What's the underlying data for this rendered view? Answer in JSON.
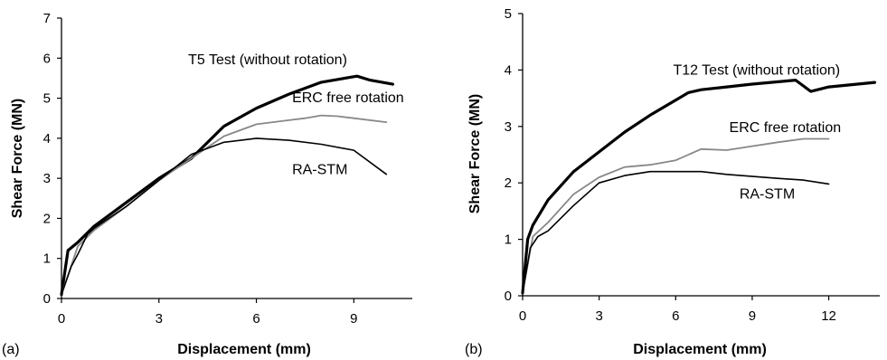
{
  "chart_data": [
    {
      "type": "line",
      "panel_label": "(a)",
      "title": "",
      "xlabel": "Displacement (mm)",
      "ylabel": "Shear Force (MN)",
      "xlim": [
        0,
        10.8
      ],
      "ylim": [
        0,
        7
      ],
      "x_ticks": [
        0,
        3,
        6,
        9
      ],
      "y_ticks": [
        0,
        1,
        2,
        3,
        4,
        5,
        6,
        7
      ],
      "grid": false,
      "legend": "none",
      "series": [
        {
          "name": "T5 Test (without rotation)",
          "color": "#000000",
          "line_width": "thick",
          "points": [
            [
              0,
              0.1
            ],
            [
              0.2,
              1.2
            ],
            [
              0.5,
              1.4
            ],
            [
              1,
              1.8
            ],
            [
              2,
              2.4
            ],
            [
              3,
              3.0
            ],
            [
              4,
              3.5
            ],
            [
              5,
              4.3
            ],
            [
              6,
              4.75
            ],
            [
              7,
              5.1
            ],
            [
              8,
              5.4
            ],
            [
              9.1,
              5.55
            ],
            [
              9.5,
              5.45
            ],
            [
              10.2,
              5.35
            ]
          ]
        },
        {
          "name": "ERC free rotation",
          "color": "#888888",
          "line_width": "medium",
          "points": [
            [
              0,
              0.1
            ],
            [
              0.5,
              1.3
            ],
            [
              1,
              1.7
            ],
            [
              2,
              2.3
            ],
            [
              3,
              2.95
            ],
            [
              4,
              3.5
            ],
            [
              5,
              4.05
            ],
            [
              6,
              4.35
            ],
            [
              7,
              4.45
            ],
            [
              7.5,
              4.5
            ],
            [
              8,
              4.57
            ],
            [
              8.5,
              4.55
            ],
            [
              9,
              4.5
            ],
            [
              10,
              4.4
            ]
          ]
        },
        {
          "name": "RA-STM",
          "color": "#000000",
          "line_width": "thin",
          "points": [
            [
              0,
              0.1
            ],
            [
              0.3,
              0.8
            ],
            [
              0.5,
              1.1
            ],
            [
              0.8,
              1.6
            ],
            [
              1,
              1.75
            ],
            [
              2,
              2.3
            ],
            [
              3,
              2.95
            ],
            [
              4,
              3.6
            ],
            [
              5,
              3.9
            ],
            [
              6,
              4.0
            ],
            [
              7,
              3.95
            ],
            [
              8,
              3.85
            ],
            [
              9,
              3.7
            ],
            [
              10,
              3.1
            ]
          ]
        }
      ],
      "annotations": [
        {
          "text": "T5 Test (without rotation)",
          "x": 3.9,
          "y": 5.85
        },
        {
          "text": "ERC free rotation",
          "x": 7.1,
          "y": 4.9
        },
        {
          "text": "RA-STM",
          "x": 7.1,
          "y": 3.1
        }
      ]
    },
    {
      "type": "line",
      "panel_label": "(b)",
      "title": "",
      "xlabel": "Displacement (mm)",
      "ylabel": "Shear Force (MN)",
      "xlim": [
        0,
        14
      ],
      "ylim": [
        0,
        5
      ],
      "x_ticks": [
        0,
        3,
        6,
        9,
        12
      ],
      "y_ticks": [
        0,
        1,
        2,
        3,
        4,
        5
      ],
      "grid": false,
      "legend": "none",
      "series": [
        {
          "name": "T12 Test (without rotation)",
          "color": "#000000",
          "line_width": "thick",
          "points": [
            [
              0,
              0.05
            ],
            [
              0.2,
              1.0
            ],
            [
              0.4,
              1.25
            ],
            [
              1,
              1.7
            ],
            [
              2,
              2.2
            ],
            [
              3,
              2.55
            ],
            [
              4,
              2.9
            ],
            [
              5,
              3.2
            ],
            [
              6.5,
              3.6
            ],
            [
              7,
              3.65
            ],
            [
              8,
              3.7
            ],
            [
              9,
              3.75
            ],
            [
              10.7,
              3.82
            ],
            [
              11.3,
              3.62
            ],
            [
              12,
              3.7
            ],
            [
              13.8,
              3.78
            ]
          ]
        },
        {
          "name": "ERC free rotation",
          "color": "#888888",
          "line_width": "medium",
          "points": [
            [
              0,
              0.05
            ],
            [
              0.4,
              1.05
            ],
            [
              1,
              1.3
            ],
            [
              2,
              1.8
            ],
            [
              3,
              2.1
            ],
            [
              4,
              2.28
            ],
            [
              5,
              2.32
            ],
            [
              6,
              2.4
            ],
            [
              7,
              2.6
            ],
            [
              8,
              2.58
            ],
            [
              9,
              2.65
            ],
            [
              10,
              2.72
            ],
            [
              11,
              2.78
            ],
            [
              12,
              2.78
            ]
          ]
        },
        {
          "name": "RA-STM",
          "color": "#000000",
          "line_width": "thin",
          "points": [
            [
              0,
              0.05
            ],
            [
              0.3,
              0.85
            ],
            [
              0.6,
              1.05
            ],
            [
              1,
              1.15
            ],
            [
              2,
              1.6
            ],
            [
              3,
              2.0
            ],
            [
              4,
              2.13
            ],
            [
              5,
              2.2
            ],
            [
              6,
              2.2
            ],
            [
              7,
              2.2
            ],
            [
              8,
              2.15
            ],
            [
              10,
              2.08
            ],
            [
              11,
              2.05
            ],
            [
              12,
              1.98
            ]
          ]
        }
      ],
      "annotations": [
        {
          "text": "T12 Test  (without rotation)",
          "x": 5.9,
          "y": 3.92
        },
        {
          "text": "ERC free rotation",
          "x": 8.1,
          "y": 2.9
        },
        {
          "text": "RA-STM",
          "x": 8.5,
          "y": 1.72
        }
      ]
    }
  ]
}
